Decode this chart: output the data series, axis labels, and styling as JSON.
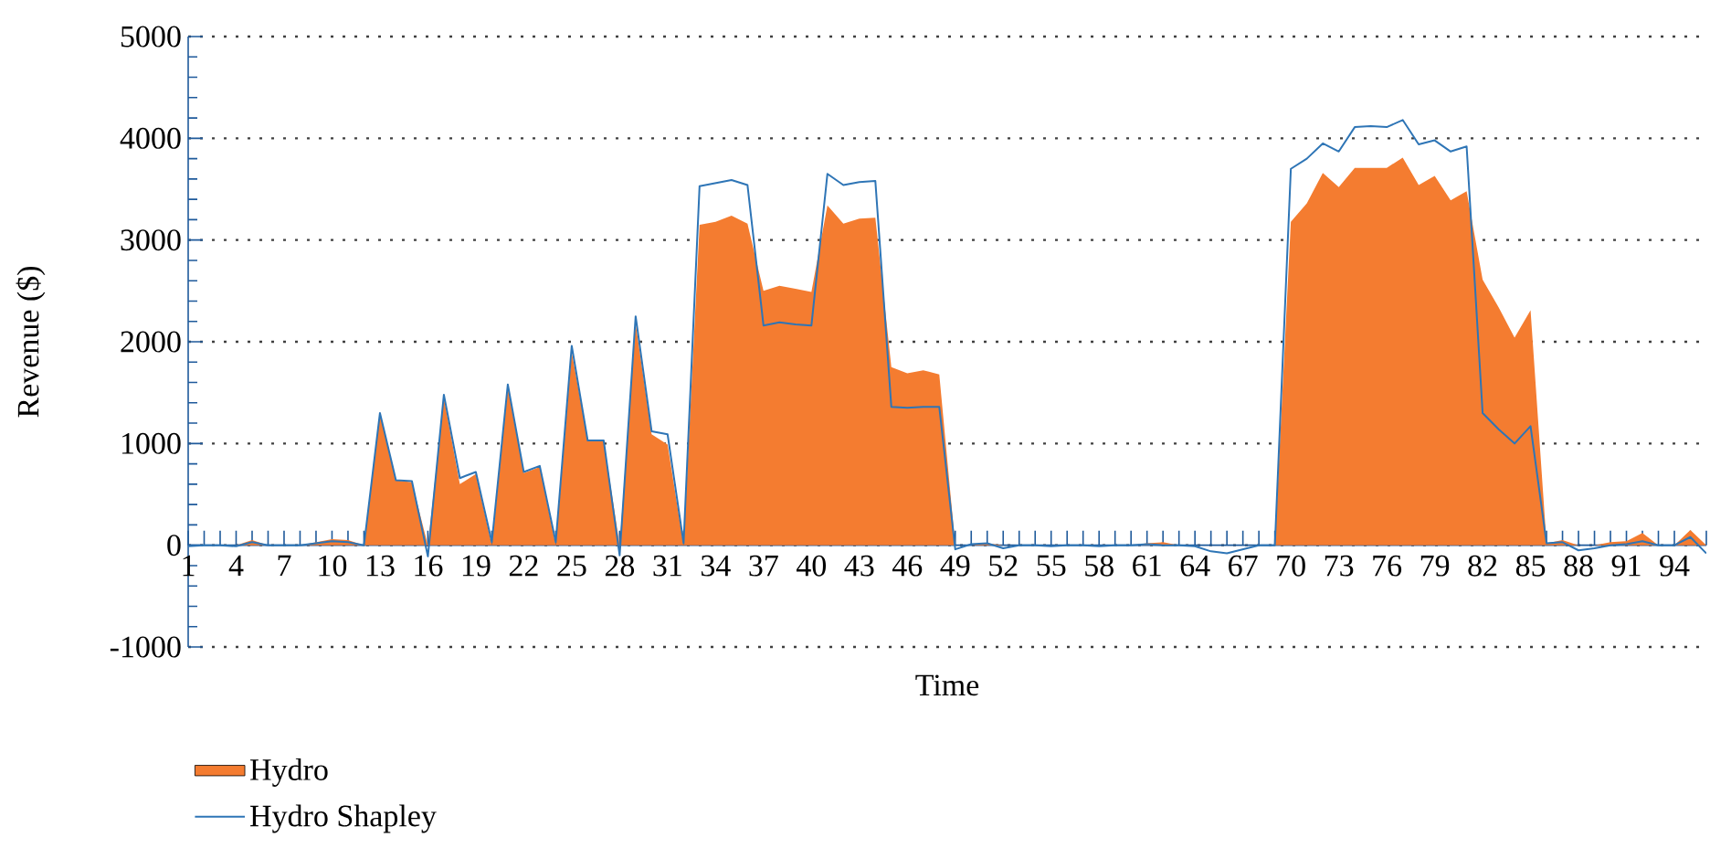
{
  "chart_data": {
    "type": "area",
    "xlabel": "Time",
    "ylabel": "Revenue ($)",
    "categories": [
      "1",
      null,
      null,
      "4",
      null,
      null,
      "7",
      null,
      null,
      "10",
      null,
      null,
      "13",
      null,
      null,
      "16",
      null,
      null,
      "19",
      null,
      null,
      "22",
      null,
      null,
      "25",
      null,
      null,
      "28",
      null,
      null,
      "31",
      null,
      null,
      "34",
      null,
      null,
      "37",
      null,
      null,
      "40",
      null,
      null,
      "43",
      null,
      null,
      "46",
      null,
      null,
      "49",
      null,
      null,
      "52",
      null,
      null,
      "55",
      null,
      null,
      "58",
      null,
      null,
      "61",
      null,
      null,
      "64",
      null,
      null,
      "67",
      null,
      null,
      "70",
      null,
      null,
      "73",
      null,
      null,
      "76",
      null,
      null,
      "79",
      null,
      null,
      "82",
      null,
      null,
      "85",
      null,
      null,
      "88",
      null,
      null,
      "91",
      null,
      null,
      "94",
      null,
      null
    ],
    "series": [
      {
        "name": "Hydro",
        "color": "#f47c30",
        "values": [
          0,
          0,
          0,
          0,
          50,
          0,
          0,
          0,
          30,
          60,
          50,
          0,
          1300,
          640,
          620,
          0,
          1450,
          600,
          700,
          0,
          1550,
          710,
          770,
          0,
          1900,
          1030,
          1030,
          0,
          2180,
          1090,
          990,
          0,
          3150,
          3180,
          3240,
          3160,
          2500,
          2550,
          2520,
          2490,
          3340,
          3160,
          3210,
          3220,
          1750,
          1690,
          1720,
          1680,
          0,
          0,
          20,
          0,
          0,
          0,
          0,
          0,
          0,
          0,
          0,
          0,
          20,
          30,
          0,
          0,
          0,
          0,
          0,
          0,
          0,
          3180,
          3360,
          3660,
          3520,
          3710,
          3710,
          3710,
          3810,
          3540,
          3630,
          3390,
          3480,
          2610,
          2340,
          2040,
          2310,
          20,
          50,
          0,
          0,
          30,
          40,
          120,
          0,
          0,
          150,
          0
        ]
      },
      {
        "name": "Hydro Shapley",
        "type": "line",
        "color": "#2e75b6",
        "values": [
          -10,
          0,
          0,
          -10,
          30,
          0,
          0,
          0,
          20,
          40,
          30,
          0,
          1300,
          640,
          630,
          -110,
          1480,
          660,
          720,
          30,
          1580,
          720,
          780,
          30,
          1960,
          1030,
          1030,
          -100,
          2250,
          1120,
          1090,
          20,
          3530,
          3560,
          3590,
          3540,
          2160,
          2190,
          2170,
          2160,
          3650,
          3540,
          3570,
          3580,
          1360,
          1350,
          1360,
          1360,
          -40,
          10,
          20,
          -30,
          0,
          0,
          -10,
          0,
          0,
          -10,
          0,
          0,
          10,
          0,
          0,
          -10,
          -60,
          -80,
          -40,
          0,
          0,
          3700,
          3800,
          3950,
          3870,
          4110,
          4120,
          4110,
          4180,
          3940,
          3980,
          3870,
          3920,
          1300,
          1140,
          1000,
          1170,
          20,
          30,
          -50,
          -30,
          0,
          10,
          40,
          0,
          0,
          80,
          -80
        ]
      }
    ],
    "ylim": [
      -1000,
      5000
    ],
    "yticks": [
      -1000,
      0,
      1000,
      2000,
      3000,
      4000,
      5000
    ],
    "grid": "y",
    "legend": "bottom"
  }
}
